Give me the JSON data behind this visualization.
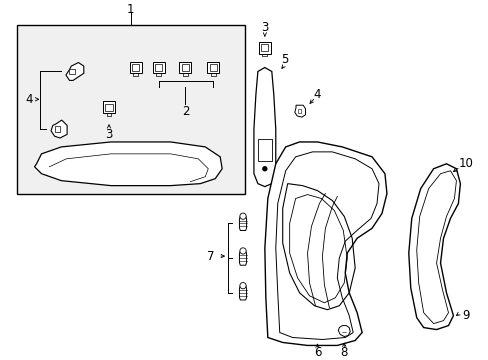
{
  "background_color": "#ffffff",
  "line_color": "#000000",
  "box_fill": "#f0f0f0",
  "lw_thin": 0.7,
  "lw_med": 1.0,
  "font_size": 8.5,
  "fig_w": 4.89,
  "fig_h": 3.6,
  "dpi": 100
}
